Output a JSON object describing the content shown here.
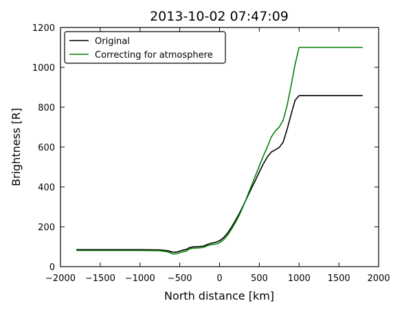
{
  "chart_data": {
    "type": "line",
    "title": "2013-10-02 07:47:09",
    "xlabel": "North distance [km]",
    "ylabel": "Brightness [R]",
    "xlim": [
      -2000,
      2000
    ],
    "ylim": [
      0,
      1200
    ],
    "xticks": [
      -2000,
      -1500,
      -1000,
      -500,
      0,
      500,
      1000,
      1500,
      2000
    ],
    "yticks": [
      0,
      200,
      400,
      600,
      800,
      1000,
      1200
    ],
    "grid": false,
    "legend_position": "top-left",
    "series": [
      {
        "name": "Original",
        "color": "#000000",
        "points": [
          [
            -1800,
            85
          ],
          [
            -1500,
            85
          ],
          [
            -1000,
            85
          ],
          [
            -750,
            84
          ],
          [
            -650,
            80
          ],
          [
            -580,
            72
          ],
          [
            -530,
            74
          ],
          [
            -470,
            82
          ],
          [
            -420,
            86
          ],
          [
            -380,
            95
          ],
          [
            -340,
            99
          ],
          [
            -250,
            101
          ],
          [
            -200,
            103
          ],
          [
            -150,
            112
          ],
          [
            -100,
            118
          ],
          [
            -50,
            122
          ],
          [
            0,
            130
          ],
          [
            50,
            145
          ],
          [
            100,
            168
          ],
          [
            150,
            198
          ],
          [
            200,
            232
          ],
          [
            250,
            268
          ],
          [
            300,
            308
          ],
          [
            350,
            350
          ],
          [
            400,
            392
          ],
          [
            450,
            432
          ],
          [
            500,
            475
          ],
          [
            550,
            515
          ],
          [
            600,
            550
          ],
          [
            650,
            575
          ],
          [
            700,
            586
          ],
          [
            750,
            598
          ],
          [
            800,
            625
          ],
          [
            850,
            690
          ],
          [
            900,
            765
          ],
          [
            950,
            835
          ],
          [
            1000,
            858
          ],
          [
            1100,
            858
          ],
          [
            1300,
            858
          ],
          [
            1500,
            858
          ],
          [
            1800,
            858
          ]
        ]
      },
      {
        "name": "Correcting for atmosphere",
        "color": "#008000",
        "points": [
          [
            -1800,
            81
          ],
          [
            -1500,
            81
          ],
          [
            -1000,
            81
          ],
          [
            -750,
            80
          ],
          [
            -650,
            74
          ],
          [
            -580,
            63
          ],
          [
            -530,
            66
          ],
          [
            -470,
            74
          ],
          [
            -420,
            78
          ],
          [
            -380,
            88
          ],
          [
            -340,
            92
          ],
          [
            -250,
            94
          ],
          [
            -200,
            97
          ],
          [
            -150,
            106
          ],
          [
            -100,
            110
          ],
          [
            -50,
            113
          ],
          [
            0,
            120
          ],
          [
            50,
            135
          ],
          [
            100,
            158
          ],
          [
            150,
            188
          ],
          [
            200,
            222
          ],
          [
            250,
            260
          ],
          [
            300,
            305
          ],
          [
            350,
            355
          ],
          [
            400,
            405
          ],
          [
            450,
            455
          ],
          [
            500,
            505
          ],
          [
            550,
            555
          ],
          [
            600,
            600
          ],
          [
            650,
            650
          ],
          [
            700,
            680
          ],
          [
            750,
            700
          ],
          [
            800,
            735
          ],
          [
            850,
            810
          ],
          [
            900,
            910
          ],
          [
            950,
            1015
          ],
          [
            1000,
            1100
          ],
          [
            1100,
            1100
          ],
          [
            1300,
            1100
          ],
          [
            1500,
            1100
          ],
          [
            1800,
            1100
          ]
        ]
      }
    ]
  }
}
